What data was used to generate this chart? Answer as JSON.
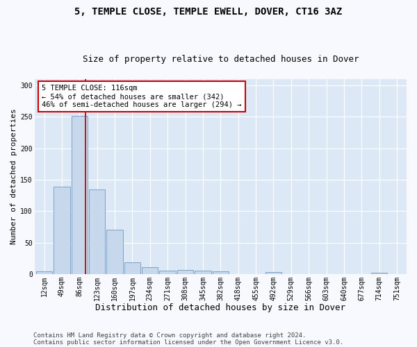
{
  "title1": "5, TEMPLE CLOSE, TEMPLE EWELL, DOVER, CT16 3AZ",
  "title2": "Size of property relative to detached houses in Dover",
  "xlabel": "Distribution of detached houses by size in Dover",
  "ylabel": "Number of detached properties",
  "footer1": "Contains HM Land Registry data © Crown copyright and database right 2024.",
  "footer2": "Contains public sector information licensed under the Open Government Licence v3.0.",
  "bin_labels": [
    "12sqm",
    "49sqm",
    "86sqm",
    "123sqm",
    "160sqm",
    "197sqm",
    "234sqm",
    "271sqm",
    "308sqm",
    "345sqm",
    "382sqm",
    "418sqm",
    "455sqm",
    "492sqm",
    "529sqm",
    "566sqm",
    "603sqm",
    "640sqm",
    "677sqm",
    "714sqm",
    "751sqm"
  ],
  "bar_heights": [
    4,
    139,
    251,
    134,
    70,
    19,
    11,
    5,
    6,
    5,
    4,
    0,
    0,
    3,
    0,
    0,
    0,
    0,
    0,
    2,
    0
  ],
  "bar_color": "#c8d8ec",
  "bar_edge_color": "#7098c0",
  "vline_x_index": 2.35,
  "vline_color": "#cc0000",
  "annotation_text": "5 TEMPLE CLOSE: 116sqm\n← 54% of detached houses are smaller (342)\n46% of semi-detached houses are larger (294) →",
  "annotation_box_facecolor": "#ffffff",
  "annotation_box_edgecolor": "#cc0000",
  "ylim": [
    0,
    310
  ],
  "yticks": [
    0,
    50,
    100,
    150,
    200,
    250,
    300
  ],
  "fig_bg_color": "#f8f8ff",
  "plot_bg_color": "#dce8f5",
  "grid_color": "#ffffff",
  "title1_fontsize": 10,
  "title2_fontsize": 9,
  "xlabel_fontsize": 9,
  "ylabel_fontsize": 8,
  "tick_fontsize": 7,
  "annot_fontsize": 7.5,
  "footer_fontsize": 6.5
}
